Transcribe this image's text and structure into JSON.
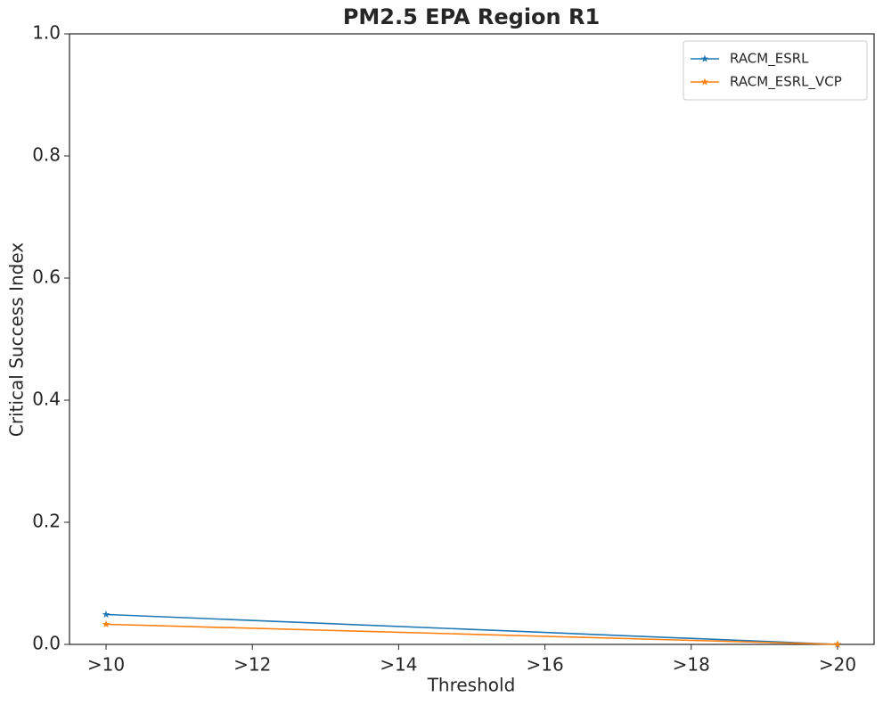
{
  "chart_data": {
    "type": "line",
    "title": "PM2.5 EPA Region R1",
    "x_label": "Threshold",
    "y_label": "Critical Success Index",
    "x": [
      10,
      20
    ],
    "series": [
      {
        "name": "RACM_ESRL",
        "color": "#1f77b4",
        "values": [
          0.049,
          0.0
        ]
      },
      {
        "name": "RACM_ESRL_VCP",
        "color": "#ff7f0e",
        "values": [
          0.033,
          0.0
        ]
      }
    ],
    "xlim": [
      9.5,
      20.5
    ],
    "xticks": [
      {
        "value": 10,
        "label": ">10"
      },
      {
        "value": 12,
        "label": ">12"
      },
      {
        "value": 14,
        "label": ">14"
      },
      {
        "value": 16,
        "label": ">16"
      },
      {
        "value": 18,
        "label": ">18"
      },
      {
        "value": 20,
        "label": ">20"
      }
    ],
    "ylim": [
      0,
      1
    ],
    "yticks": [
      {
        "value": 0,
        "label": "0.0"
      },
      0.2,
      0.4,
      0.6,
      0.8,
      {
        "value": 1,
        "label": "1.0"
      }
    ],
    "grid": false,
    "legend": "upper right",
    "marker": "star"
  }
}
